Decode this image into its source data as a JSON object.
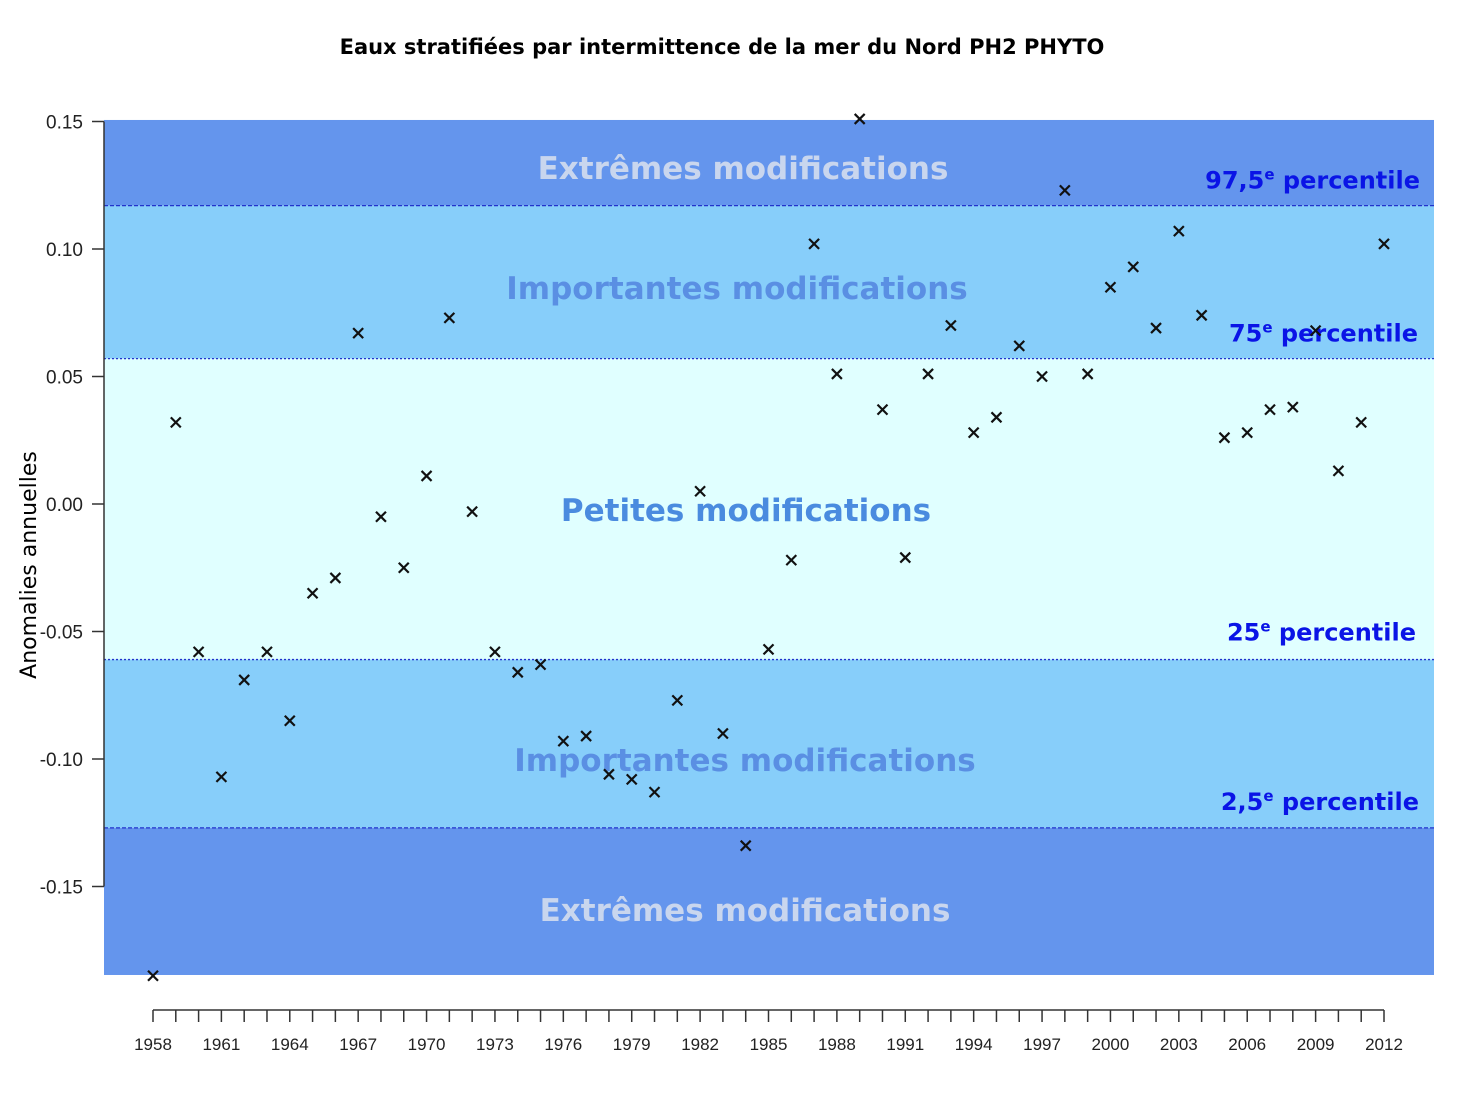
{
  "chart_data": {
    "type": "scatter",
    "title": "Eaux stratifiées par intermittence de la mer du Nord PH2 PHYTO",
    "xlabel": "",
    "ylabel": "Anomalies annuelles",
    "xlim": [
      1956,
      2014.3
    ],
    "ylim": [
      -0.1847,
      0.1506
    ],
    "yticks": [
      0.15,
      0.1,
      0.05,
      0.0,
      -0.05,
      -0.1,
      -0.15
    ],
    "ytick_labels": [
      "0.15",
      "0.10",
      "0.05",
      "0.00",
      "-0.05",
      "-0.10",
      "-0.15"
    ],
    "xtick_labels": [
      "1958",
      "1961",
      "1964",
      "1967",
      "1970",
      "1973",
      "1976",
      "1979",
      "1982",
      "1985",
      "1988",
      "1991",
      "1994",
      "1997",
      "2000",
      "2003",
      "2006",
      "2009",
      "2012"
    ],
    "marker": "x",
    "x": [
      1958,
      1959,
      1960,
      1961,
      1962,
      1963,
      1964,
      1965,
      1966,
      1967,
      1968,
      1969,
      1970,
      1971,
      1972,
      1973,
      1974,
      1975,
      1976,
      1977,
      1978,
      1979,
      1980,
      1981,
      1982,
      1983,
      1984,
      1985,
      1986,
      1987,
      1988,
      1989,
      1990,
      1991,
      1992,
      1993,
      1994,
      1995,
      1996,
      1997,
      1998,
      1999,
      2000,
      2001,
      2002,
      2003,
      2004,
      2005,
      2006,
      2007,
      2008,
      2009,
      2010,
      2011,
      2012
    ],
    "y": [
      -0.185,
      0.032,
      -0.058,
      -0.107,
      -0.069,
      -0.058,
      -0.085,
      -0.035,
      -0.029,
      0.067,
      -0.005,
      -0.025,
      0.011,
      0.073,
      -0.003,
      -0.058,
      -0.066,
      -0.063,
      -0.093,
      -0.091,
      -0.106,
      -0.108,
      -0.113,
      -0.077,
      0.005,
      -0.09,
      -0.134,
      -0.057,
      -0.022,
      0.102,
      0.051,
      0.151,
      0.037,
      -0.021,
      0.051,
      0.07,
      0.028,
      0.034,
      0.062,
      0.05,
      0.123,
      0.051,
      0.085,
      0.093,
      0.069,
      0.107,
      0.074,
      0.026,
      0.028,
      0.037,
      0.038,
      0.068,
      0.013,
      0.032,
      0.102
    ],
    "thresholds": [
      {
        "label": "97,5",
        "sup": "e",
        "suffix": " percentile",
        "value": 0.117
      },
      {
        "label": "75",
        "sup": "e",
        "suffix": " percentile",
        "value": 0.057
      },
      {
        "label": "25",
        "sup": "e",
        "suffix": " percentile",
        "value": -0.061
      },
      {
        "label": "2,5",
        "sup": "e",
        "suffix": " percentile",
        "value": -0.127
      }
    ],
    "bands": [
      {
        "label": "Extrêmes modifications",
        "from": 0.117,
        "to": 0.1506,
        "color": "#6495ED"
      },
      {
        "label": "Importantes modifications",
        "from": 0.057,
        "to": 0.117,
        "color": "#87CEFA"
      },
      {
        "label": "Petites modifications",
        "from": -0.061,
        "to": 0.057,
        "color": "#E0FFFF"
      },
      {
        "label": "Importantes modifications",
        "from": -0.127,
        "to": -0.061,
        "color": "#87CEFA"
      },
      {
        "label": "Extrêmes modifications",
        "from": -0.1847,
        "to": -0.127,
        "color": "#6495ED"
      }
    ],
    "legend": "none",
    "grid": false
  }
}
